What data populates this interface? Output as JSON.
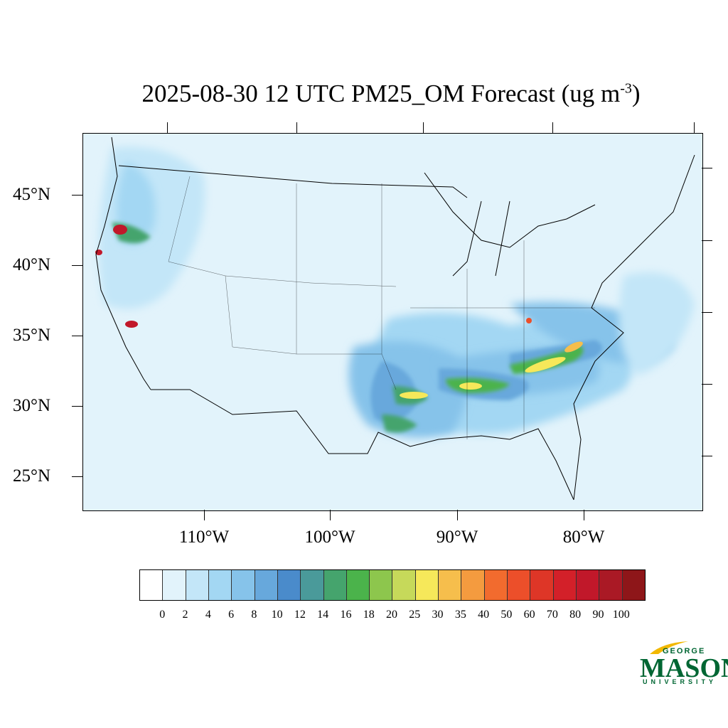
{
  "title": {
    "main": "2025-08-30 12 UTC PM25_OM Forecast (ug m",
    "exponent": "-3",
    "close": ")"
  },
  "map": {
    "lat_labels": [
      "45°N",
      "40°N",
      "35°N",
      "30°N",
      "25°N"
    ],
    "lon_labels": [
      "110°W",
      "100°W",
      "90°W",
      "80°W"
    ],
    "background_color": "#e2f3fb",
    "hotspots": [
      {
        "region": "northern-california-oregon",
        "level": 100
      },
      {
        "region": "southern-sierra-nevada",
        "level": 100
      },
      {
        "region": "arkansas-louisiana",
        "level": 30
      },
      {
        "region": "mississippi-alabama",
        "level": 35
      },
      {
        "region": "carolinas",
        "level": 35
      }
    ]
  },
  "colorbar": {
    "colors": [
      "#ffffff",
      "#e2f3fb",
      "#c3e6f8",
      "#a3d7f3",
      "#86c3ea",
      "#67a8dc",
      "#4a8bcb",
      "#4a9a9a",
      "#45a46d",
      "#4bb34b",
      "#8dc64d",
      "#c6d95a",
      "#f6e85a",
      "#f6be4c",
      "#f49b3f",
      "#f26b2e",
      "#ec4f2a",
      "#de3627",
      "#d32029",
      "#c1182a",
      "#aa1925",
      "#8e1619"
    ],
    "labels": [
      "0",
      "2",
      "4",
      "6",
      "8",
      "10",
      "12",
      "14",
      "16",
      "18",
      "20",
      "25",
      "30",
      "35",
      "40",
      "50",
      "60",
      "70",
      "80",
      "90",
      "100"
    ]
  },
  "logo": {
    "line1": "GEORGE",
    "line2": "MASON",
    "line3": "UNIVERSITY",
    "color": "#006633"
  }
}
